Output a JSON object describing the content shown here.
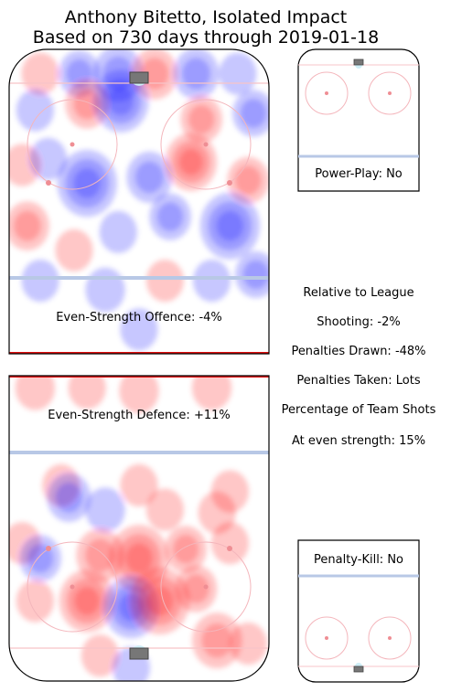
{
  "title_line1": "Anthony Bitetto, Isolated Impact",
  "title_line2": "Based on 730 days through 2019-01-18",
  "panels": {
    "ev_offence": "Even-Strength Offence: -4%",
    "ev_defence": "Even-Strength Defence: +11%",
    "power_play": "Power-Play: No",
    "penalty_kill": "Penalty-Kill: No"
  },
  "stats": {
    "relative": "Relative to League",
    "shooting": "Shooting: -2%",
    "penalties_drawn": "Penalties Drawn: -48%",
    "penalties_taken": "Penalties Taken: Lots",
    "pct_team_shots": "Percentage of Team Shots",
    "at_even_strength": "At even strength: 15%"
  },
  "chart_data": [
    {
      "type": "heatmap",
      "name": "Even-Strength Offence",
      "value_label": "-4%",
      "color_scale": {
        "positive": "#ff0000",
        "negative": "#0000ff"
      },
      "blobs": [
        {
          "x": 0.12,
          "y": 0.08,
          "v": 0.3
        },
        {
          "x": 0.27,
          "y": 0.08,
          "v": -0.4
        },
        {
          "x": 0.42,
          "y": 0.08,
          "v": -0.6
        },
        {
          "x": 0.56,
          "y": 0.08,
          "v": 0.5
        },
        {
          "x": 0.72,
          "y": 0.08,
          "v": -0.5
        },
        {
          "x": 0.88,
          "y": 0.08,
          "v": -0.3
        },
        {
          "x": 0.1,
          "y": 0.2,
          "v": -0.3
        },
        {
          "x": 0.3,
          "y": 0.18,
          "v": 0.45
        },
        {
          "x": 0.43,
          "y": 0.17,
          "v": -0.75
        },
        {
          "x": 0.74,
          "y": 0.23,
          "v": 0.4
        },
        {
          "x": 0.94,
          "y": 0.21,
          "v": -0.4
        },
        {
          "x": 0.05,
          "y": 0.38,
          "v": 0.3
        },
        {
          "x": 0.15,
          "y": 0.36,
          "v": -0.3
        },
        {
          "x": 0.3,
          "y": 0.44,
          "v": -0.85
        },
        {
          "x": 0.54,
          "y": 0.42,
          "v": -0.5
        },
        {
          "x": 0.7,
          "y": 0.37,
          "v": 0.65
        },
        {
          "x": 0.92,
          "y": 0.43,
          "v": 0.4
        },
        {
          "x": 0.07,
          "y": 0.58,
          "v": 0.45
        },
        {
          "x": 0.25,
          "y": 0.66,
          "v": 0.3
        },
        {
          "x": 0.42,
          "y": 0.6,
          "v": -0.3
        },
        {
          "x": 0.62,
          "y": 0.55,
          "v": -0.4
        },
        {
          "x": 0.85,
          "y": 0.58,
          "v": -0.85
        },
        {
          "x": 0.12,
          "y": 0.76,
          "v": -0.3
        },
        {
          "x": 0.37,
          "y": 0.79,
          "v": -0.35
        },
        {
          "x": 0.6,
          "y": 0.76,
          "v": 0.3
        },
        {
          "x": 0.78,
          "y": 0.76,
          "v": -0.3
        },
        {
          "x": 0.95,
          "y": 0.74,
          "v": -0.4
        },
        {
          "x": 0.5,
          "y": 0.92,
          "v": -0.3
        }
      ]
    },
    {
      "type": "heatmap",
      "name": "Even-Strength Defence",
      "value_label": "+11%",
      "color_scale": {
        "positive": "#ff0000",
        "negative": "#0000ff"
      },
      "blobs": [
        {
          "x": 0.1,
          "y": 0.04,
          "v": 0.35
        },
        {
          "x": 0.3,
          "y": 0.04,
          "v": 0.3
        },
        {
          "x": 0.5,
          "y": 0.05,
          "v": 0.35
        },
        {
          "x": 0.78,
          "y": 0.04,
          "v": 0.35
        },
        {
          "x": 0.2,
          "y": 0.36,
          "v": 0.3
        },
        {
          "x": 0.5,
          "y": 0.36,
          "v": 0.3
        },
        {
          "x": 0.85,
          "y": 0.38,
          "v": 0.3
        },
        {
          "x": 0.23,
          "y": 0.4,
          "v": -0.45
        },
        {
          "x": 0.37,
          "y": 0.44,
          "v": -0.35
        },
        {
          "x": 0.6,
          "y": 0.44,
          "v": 0.3
        },
        {
          "x": 0.8,
          "y": 0.45,
          "v": 0.3
        },
        {
          "x": 0.05,
          "y": 0.55,
          "v": 0.3
        },
        {
          "x": 0.12,
          "y": 0.6,
          "v": -0.4
        },
        {
          "x": 0.35,
          "y": 0.59,
          "v": 0.55
        },
        {
          "x": 0.5,
          "y": 0.6,
          "v": 0.85
        },
        {
          "x": 0.68,
          "y": 0.57,
          "v": 0.4
        },
        {
          "x": 0.85,
          "y": 0.55,
          "v": 0.3
        },
        {
          "x": 0.3,
          "y": 0.74,
          "v": 0.75
        },
        {
          "x": 0.47,
          "y": 0.76,
          "v": -0.75
        },
        {
          "x": 0.58,
          "y": 0.74,
          "v": 0.85
        },
        {
          "x": 0.72,
          "y": 0.7,
          "v": 0.4
        },
        {
          "x": 0.1,
          "y": 0.74,
          "v": 0.3
        },
        {
          "x": 0.8,
          "y": 0.87,
          "v": 0.6
        },
        {
          "x": 0.35,
          "y": 0.92,
          "v": 0.3
        },
        {
          "x": 0.47,
          "y": 0.96,
          "v": -0.3
        },
        {
          "x": 0.92,
          "y": 0.88,
          "v": 0.3
        }
      ]
    }
  ]
}
